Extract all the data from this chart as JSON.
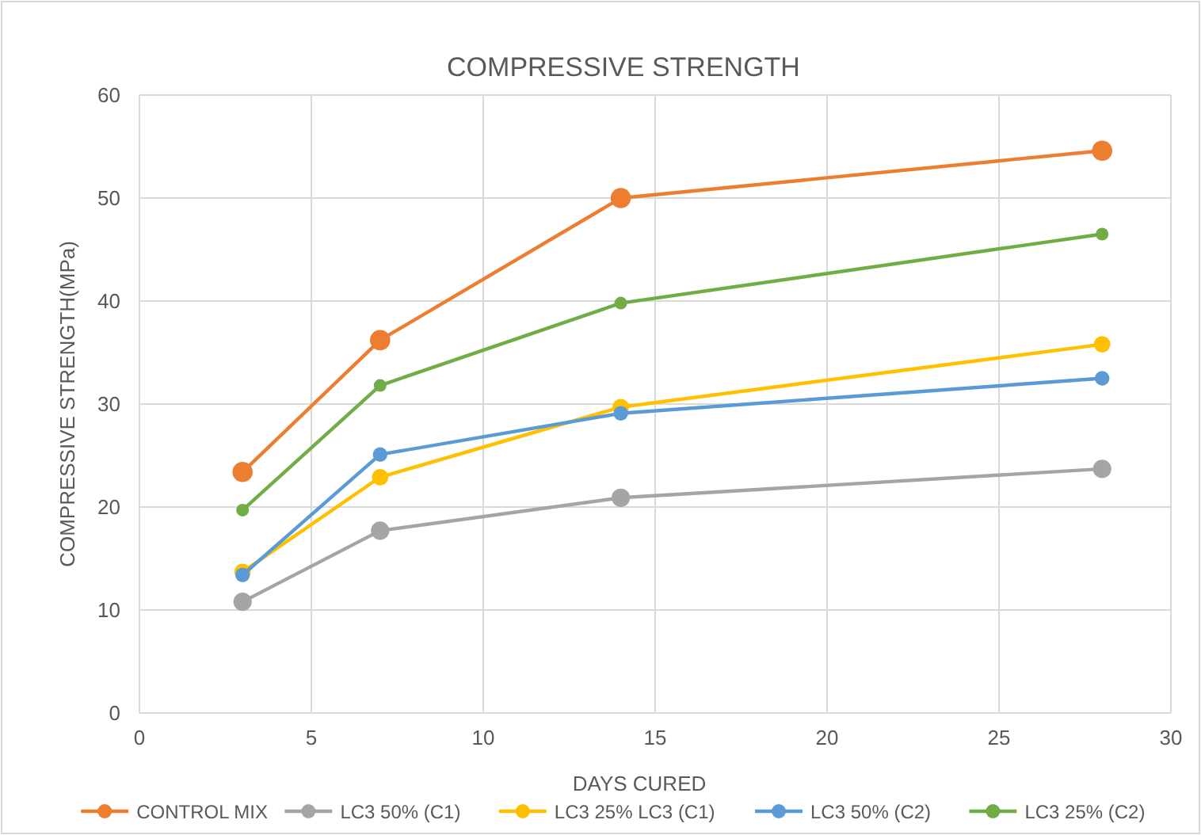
{
  "chart_data": {
    "type": "line",
    "title": "COMPRESSIVE STRENGTH",
    "xlabel": "DAYS CURED",
    "ylabel": "COMPRESSIVE STRENGTH(MPa)",
    "x": [
      3,
      7,
      14,
      28
    ],
    "series": [
      {
        "name": "CONTROL MIX",
        "color": "#ed7d31",
        "values": [
          23.4,
          36.2,
          50,
          54.6
        ]
      },
      {
        "name": "LC3 50% (C1)",
        "color": "#a5a5a5",
        "values": [
          10.8,
          17.7,
          20.9,
          23.7
        ]
      },
      {
        "name": "LC3 25% LC3 (C1)",
        "color": "#ffc000",
        "values": [
          13.7,
          22.9,
          29.7,
          35.8
        ]
      },
      {
        "name": "LC3 50% (C2)",
        "color": "#5b9bd5",
        "values": [
          13.4,
          25.1,
          29.1,
          32.5
        ]
      },
      {
        "name": "LC3 25% (C2)",
        "color": "#70ad47",
        "values": [
          19.7,
          31.8,
          39.8,
          46.5
        ]
      }
    ],
    "xlim": [
      0,
      30
    ],
    "xticks": [
      0,
      5,
      10,
      15,
      20,
      25,
      30
    ],
    "ylim": [
      0,
      60
    ],
    "yticks": [
      0,
      10,
      20,
      30,
      40,
      50,
      60
    ],
    "grid": true,
    "legend": "bottom",
    "marker": "circle",
    "line_style": "solid"
  }
}
